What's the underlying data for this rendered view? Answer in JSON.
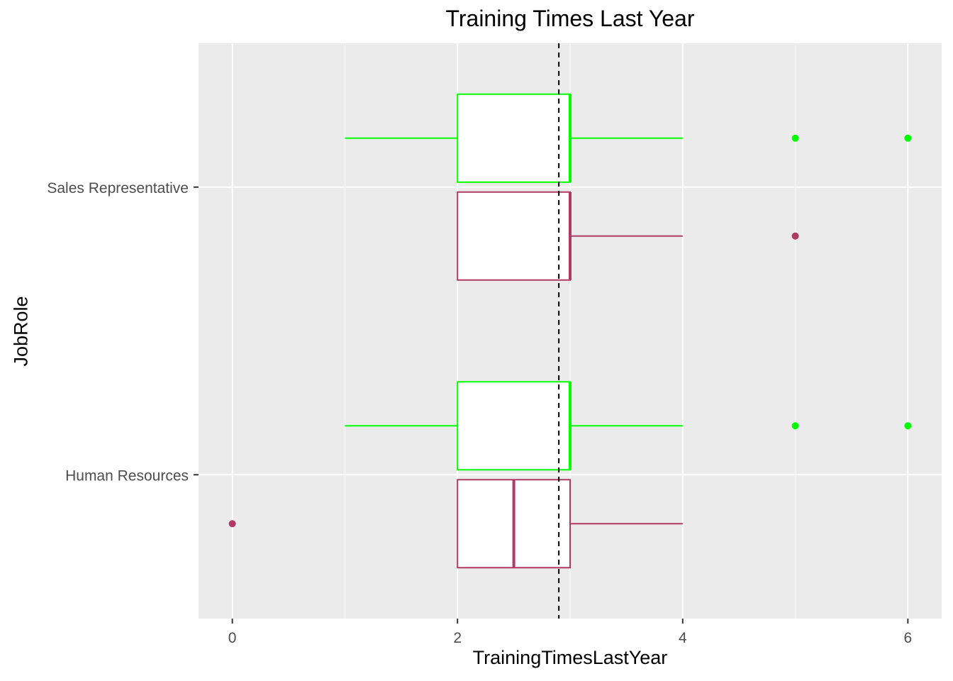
{
  "chart_data": {
    "type": "boxplot",
    "orientation": "horizontal",
    "title": "Training Times Last Year",
    "xlabel": "TrainingTimesLastYear",
    "ylabel": "JobRole",
    "xlim": [
      -0.3,
      6.3
    ],
    "x_ticks": [
      0,
      2,
      4,
      6
    ],
    "categories": [
      "Human Resources",
      "Sales Representative"
    ],
    "grid": true,
    "reference_line": {
      "x": 2.9,
      "style": "dashed",
      "color": "#000000"
    },
    "groups": [
      {
        "category": "Human Resources",
        "boxes": [
          {
            "color": "#00ff00",
            "lower_whisker": 1,
            "q1": 2,
            "median": 3,
            "q3": 3,
            "upper_whisker": 4,
            "outliers": [
              5,
              6
            ]
          },
          {
            "color": "#b03a64",
            "lower_whisker": 2,
            "q1": 2,
            "median": 2.5,
            "q3": 3,
            "upper_whisker": 4,
            "outliers": [
              0
            ]
          }
        ]
      },
      {
        "category": "Sales Representative",
        "boxes": [
          {
            "color": "#00ff00",
            "lower_whisker": 1,
            "q1": 2,
            "median": 3,
            "q3": 3,
            "upper_whisker": 4,
            "outliers": [
              5,
              6
            ]
          },
          {
            "color": "#b03a64",
            "lower_whisker": 2,
            "q1": 2,
            "median": 3,
            "q3": 3,
            "upper_whisker": 4,
            "outliers": [
              5
            ]
          }
        ]
      }
    ]
  }
}
